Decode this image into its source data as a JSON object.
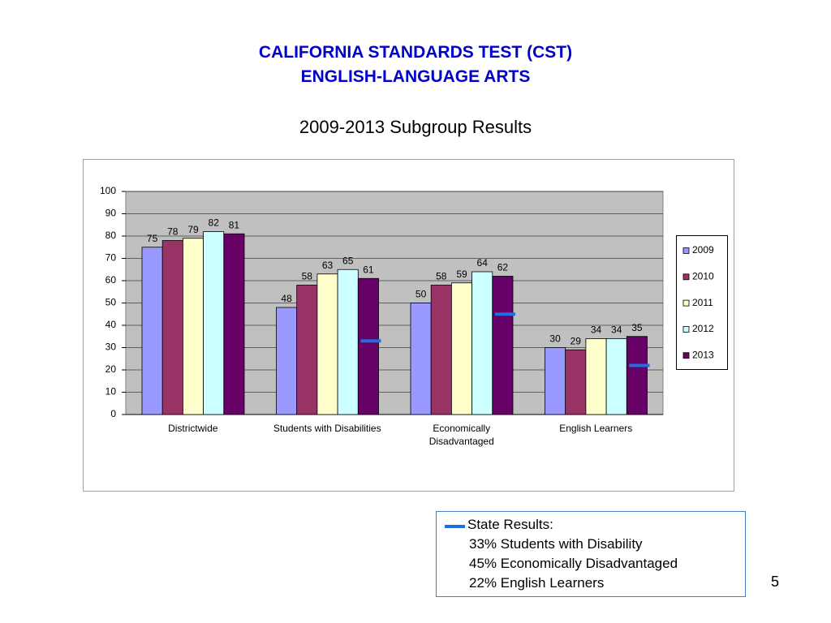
{
  "title": [
    "CALIFORNIA STANDARDS TEST (CST)",
    "ENGLISH-LANGUAGE ARTS"
  ],
  "chart_data": {
    "type": "bar",
    "title": "2009-2013 Subgroup Results",
    "categories": [
      "Districtwide",
      "Students with Disabilities",
      "Economically Disadvantaged",
      "English Learners"
    ],
    "series": [
      {
        "name": "2009",
        "color": "#9999ff",
        "values": [
          75,
          48,
          50,
          30
        ]
      },
      {
        "name": "2010",
        "color": "#993366",
        "values": [
          78,
          58,
          58,
          29
        ]
      },
      {
        "name": "2011",
        "color": "#ffffcc",
        "values": [
          79,
          63,
          59,
          34
        ]
      },
      {
        "name": "2012",
        "color": "#ccffff",
        "values": [
          82,
          65,
          64,
          34
        ]
      },
      {
        "name": "2013",
        "color": "#660066",
        "values": [
          81,
          61,
          62,
          35
        ]
      }
    ],
    "state_results": {
      "color": "#1f6fe0",
      "values": [
        null,
        33,
        45,
        22
      ]
    },
    "ylim": [
      0,
      100
    ],
    "yticks": [
      0,
      10,
      20,
      30,
      40,
      50,
      60,
      70,
      80,
      90,
      100
    ],
    "grid": true,
    "legend": "right"
  },
  "note": {
    "heading": "State Results:",
    "lines": [
      "33% Students with Disability",
      "45% Economically Disadvantaged",
      "22% English Learners"
    ]
  },
  "page_number": "5"
}
